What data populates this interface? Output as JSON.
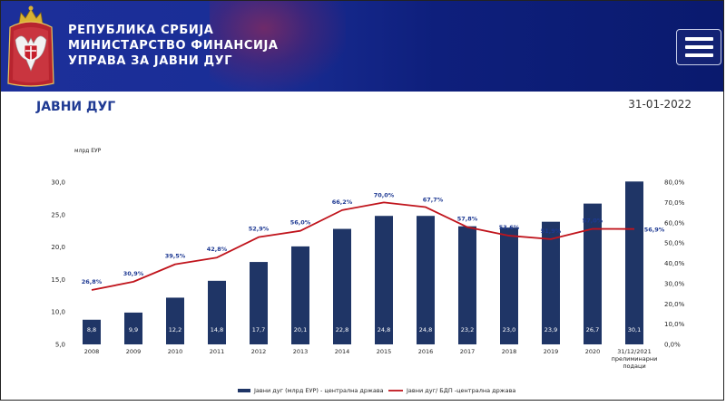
{
  "header": {
    "title_lines": [
      "РЕПУБЛИКА СРБИЈА",
      "МИНИСТАРСТВО ФИНАНСИЈА",
      "УПРАВА ЗА ЈАВНИ ДУГ"
    ],
    "crest_icon": "serbian-coat-of-arms-icon",
    "menu_icon": "hamburger-menu-icon",
    "background_color": "#1c2f9a"
  },
  "page": {
    "title": "ЈАВНИ ДУГ",
    "date": "31-01-2022"
  },
  "chart_data": {
    "type": "bar",
    "categories": [
      "2008",
      "2009",
      "2010",
      "2011",
      "2012",
      "2013",
      "2014",
      "2015",
      "2016",
      "2017",
      "2018",
      "2019",
      "2020",
      "31/12/2021 прелиминарни подаци"
    ],
    "category_lines": [
      [
        "2008"
      ],
      [
        "2009"
      ],
      [
        "2010"
      ],
      [
        "2011"
      ],
      [
        "2012"
      ],
      [
        "2013"
      ],
      [
        "2014"
      ],
      [
        "2015"
      ],
      [
        "2016"
      ],
      [
        "2017"
      ],
      [
        "2018"
      ],
      [
        "2019"
      ],
      [
        "2020"
      ],
      [
        "31/12/2021",
        "прелиминарни",
        "подаци"
      ]
    ],
    "series": [
      {
        "name": "Јавни дуг (млрд ЕУР) - централна држава",
        "type": "bar",
        "axis": "left",
        "color": "#1f3566",
        "values": [
          8.8,
          9.9,
          12.2,
          14.8,
          17.7,
          20.1,
          22.8,
          24.8,
          24.8,
          23.2,
          23.0,
          23.9,
          26.7,
          30.1
        ],
        "labels": [
          "8,8",
          "9,9",
          "12,2",
          "14,8",
          "17,7",
          "20,1",
          "22,8",
          "24,8",
          "24,8",
          "23,2",
          "23,0",
          "23,9",
          "26,7",
          "30,1"
        ]
      },
      {
        "name": "Јавни дуг/ БДП -централна држава",
        "type": "line",
        "axis": "right",
        "color": "#c0141c",
        "values": [
          26.8,
          30.9,
          39.5,
          42.8,
          52.9,
          56.0,
          66.2,
          70.0,
          67.7,
          57.8,
          53.6,
          51.9,
          57.0,
          56.9
        ],
        "labels": [
          "26,8%",
          "30,9%",
          "39,5%",
          "42,8%",
          "52,9%",
          "56,0%",
          "66,2%",
          "70,0%",
          "67,7%",
          "57,8%",
          "53,6%",
          "51,9%",
          "57,0%",
          "56,9%"
        ]
      }
    ],
    "y_left": {
      "label": "млрд ЕУР",
      "range": [
        5,
        30
      ],
      "ticks": [
        5,
        10,
        15,
        20,
        25,
        30
      ],
      "tick_labels": [
        "5,0",
        "10,0",
        "15,0",
        "20,0",
        "25,0",
        "30,0"
      ]
    },
    "y_right": {
      "range": [
        0,
        80
      ],
      "ticks": [
        0,
        10,
        20,
        30,
        40,
        50,
        60,
        70,
        80
      ],
      "tick_labels": [
        "0,0%",
        "10,0%",
        "20,0%",
        "30,0%",
        "40,0%",
        "50,0%",
        "60,0%",
        "70,0%",
        "80,0%"
      ]
    },
    "grid": false,
    "legend_position": "bottom-center"
  }
}
